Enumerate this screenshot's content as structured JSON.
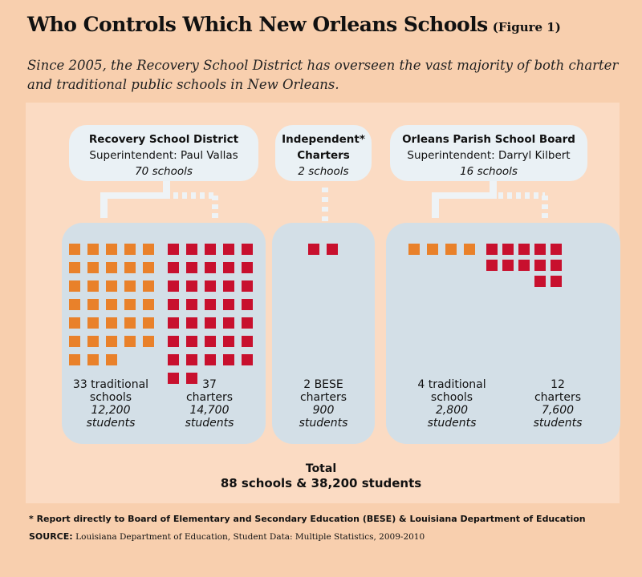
{
  "title": "Who Controls Which New Orleans Schools",
  "figure_label": "(Figure 1)",
  "subtitle": "Since 2005, the Recovery School District has overseen the vast majority of both charter and traditional public schools in New Orleans.",
  "headers": {
    "rsd": {
      "name": "Recovery School District",
      "superintendent": "Superintendent: Paul Vallas",
      "count": "70 schools"
    },
    "independent": {
      "line1": "Independent*",
      "line2": "Charters",
      "count": "2 schools"
    },
    "opsb": {
      "name": "Orleans Parish School Board",
      "superintendent": "Superintendent: Darryl Kilbert",
      "count": "16 schools"
    }
  },
  "groups": {
    "rsd_traditional": {
      "line1": "33 traditional",
      "line2": "schools",
      "students": "12,200",
      "unit": "students",
      "schools": 33
    },
    "rsd_charters": {
      "line1": "37",
      "line2": "charters",
      "students": "14,700",
      "unit": "students",
      "schools": 37
    },
    "bese_charters": {
      "line1": "2 BESE",
      "line2": "charters",
      "students": "900",
      "unit": "students",
      "schools": 2
    },
    "opsb_traditional": {
      "line1": "4 traditional",
      "line2": "schools",
      "students": "2,800",
      "unit": "students",
      "schools": 4
    },
    "opsb_charters": {
      "line1": "12",
      "line2": "charters",
      "students": "7,600",
      "unit": "students",
      "schools": 12
    }
  },
  "total": {
    "label": "Total",
    "value": "88 schools & 38,200 students"
  },
  "footnote": "* Report directly to Board of Elementary and Secondary Education (BESE) & Louisiana Department of Education",
  "source": {
    "label": "SOURCE:",
    "text": "Louisiana Department of Education, Student Data: Multiple Statistics, 2009-2010"
  },
  "colors": {
    "traditional": "#e9812a",
    "charter": "#c8102e",
    "box": "#d3dfe7",
    "background": "#f8cfae"
  }
}
